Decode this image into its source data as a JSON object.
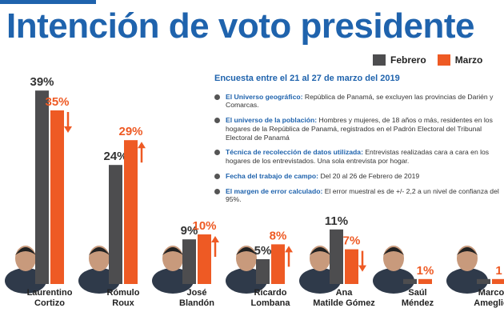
{
  "chart_data": {
    "type": "bar",
    "title": "Intención de voto presidente",
    "categories": [
      "Laurentino\nCortizo",
      "Rómulo\nRoux",
      "José\nBlandón",
      "Ricardo\nLombana",
      "Ana\nMatilde Gómez",
      "Saúl\nMéndez",
      "Marco\nAmeglio"
    ],
    "series": [
      {
        "name": "Febrero",
        "color": "#4d4d4f",
        "values": [
          39,
          24,
          9,
          5,
          11,
          1,
          1
        ],
        "value_labels": [
          "39%",
          "24%",
          "9%",
          "5%",
          "11%",
          null,
          null
        ]
      },
      {
        "name": "Marzo",
        "color": "#ee5a24",
        "values": [
          35,
          29,
          10,
          8,
          7,
          1,
          1
        ],
        "value_labels": [
          "35%",
          "29%",
          "10%",
          "8%",
          "7%",
          "1%",
          "1"
        ]
      }
    ],
    "annotations": {
      "heading": "Encuesta entre el 21 al 27 de marzo del 2019",
      "items": [
        {
          "label": "El Universo geográfico:",
          "text": "República de Panamá, se excluyen las provincias de Darién y Comarcas."
        },
        {
          "label": "El universo de la población:",
          "text": "Hombres y mujeres, de 18 años o más, residentes en los hogares de la República de Panamá, registrados en el Padrón Electoral del Tribunal Electoral de Panamá"
        },
        {
          "label": "Técnica de recolección de datos utilizada:",
          "text": "Entrevistas realizadas cara a cara en los hogares de los entrevistados. Una sola entrevista por hogar."
        },
        {
          "label": "Fecha del trabajo de campo:",
          "text": "Del 20 al 26 de Febrero de 2019"
        },
        {
          "label": "El margen de error calculado:",
          "text": "El error muestral es de +/- 2,2 a un nivel de confianza del 95%."
        }
      ]
    }
  }
}
